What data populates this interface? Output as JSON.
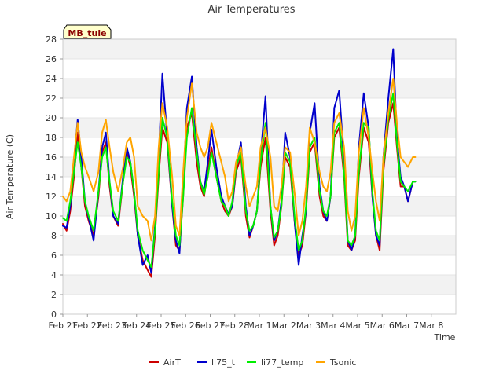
{
  "chart_data": {
    "type": "line",
    "title": "Air Temperatures",
    "xlabel": "Time",
    "ylabel": "Air Temperature (C)",
    "site_label": "MB_tule",
    "ylim": [
      0,
      28
    ],
    "yticks": [
      0,
      2,
      4,
      6,
      8,
      10,
      12,
      14,
      16,
      18,
      20,
      22,
      24,
      26,
      28
    ],
    "xlim": [
      0,
      16
    ],
    "x_unit": "days since Feb 21",
    "xtick_labels": [
      "Feb 21",
      "Feb 22",
      "Feb 23",
      "Feb 24",
      "Feb 25",
      "Feb 26",
      "Feb 27",
      "Feb 28",
      "Mar 1",
      "Mar 2",
      "Mar 3",
      "Mar 4",
      "Mar 5",
      "Mar 6",
      "Mar 7",
      "Mar 8"
    ],
    "grid": "horizontal bands",
    "legend_position": "bottom",
    "series": [
      {
        "name": "AirT",
        "color": "#cc0000",
        "x": [
          0.0,
          0.15,
          0.3,
          0.45,
          0.6,
          0.75,
          0.9,
          1.05,
          1.25,
          1.45,
          1.6,
          1.75,
          1.9,
          2.05,
          2.25,
          2.45,
          2.6,
          2.75,
          2.9,
          3.05,
          3.25,
          3.45,
          3.6,
          3.75,
          3.9,
          4.05,
          4.25,
          4.45,
          4.6,
          4.75,
          4.9,
          5.05,
          5.25,
          5.45,
          5.6,
          5.75,
          5.9,
          6.05,
          6.25,
          6.45,
          6.6,
          6.75,
          6.9,
          7.05,
          7.25,
          7.45,
          7.6,
          7.75,
          7.9,
          8.05,
          8.25,
          8.45,
          8.6,
          8.75,
          8.9,
          9.05,
          9.25,
          9.45,
          9.6,
          9.75,
          9.9,
          10.05,
          10.25,
          10.45,
          10.6,
          10.75,
          10.9,
          11.05,
          11.25,
          11.45,
          11.6,
          11.75,
          11.9,
          12.05,
          12.25,
          12.45,
          12.6,
          12.75,
          12.9,
          13.05,
          13.25,
          13.45,
          13.6,
          13.75,
          13.9,
          14.05,
          14.25,
          14.35
        ],
        "y": [
          9.2,
          8.5,
          10.5,
          14.0,
          18.5,
          15.0,
          11.0,
          9.5,
          8.0,
          12.0,
          16.5,
          17.5,
          13.0,
          10.0,
          9.0,
          13.5,
          16.5,
          15.0,
          12.0,
          8.0,
          5.5,
          4.5,
          3.8,
          8.0,
          14.0,
          19.0,
          17.5,
          11.0,
          7.0,
          6.5,
          12.0,
          19.0,
          20.5,
          15.5,
          13.0,
          12.0,
          14.5,
          17.0,
          14.0,
          11.5,
          10.5,
          10.0,
          11.0,
          14.5,
          16.0,
          10.0,
          7.8,
          9.0,
          10.5,
          15.0,
          18.0,
          10.5,
          7.0,
          8.0,
          11.0,
          16.0,
          15.0,
          9.0,
          6.0,
          7.0,
          10.5,
          16.5,
          17.5,
          12.0,
          10.0,
          9.5,
          12.0,
          18.0,
          19.0,
          14.0,
          7.0,
          6.5,
          7.5,
          14.0,
          19.0,
          17.5,
          12.0,
          8.0,
          6.5,
          14.5,
          19.5,
          21.5,
          17.0,
          13.0,
          13.0,
          11.5,
          13.5,
          13.5
        ]
      },
      {
        "name": "li75_t",
        "color": "#0000cc",
        "x": [
          0.0,
          0.15,
          0.3,
          0.45,
          0.6,
          0.75,
          0.9,
          1.05,
          1.25,
          1.45,
          1.6,
          1.75,
          1.9,
          2.05,
          2.25,
          2.45,
          2.6,
          2.75,
          2.9,
          3.05,
          3.25,
          3.45,
          3.6,
          3.75,
          3.9,
          4.05,
          4.25,
          4.45,
          4.6,
          4.75,
          4.9,
          5.05,
          5.25,
          5.45,
          5.6,
          5.75,
          5.9,
          6.05,
          6.25,
          6.45,
          6.6,
          6.75,
          6.9,
          7.05,
          7.25,
          7.45,
          7.6,
          7.75,
          7.9,
          8.05,
          8.25,
          8.45,
          8.6,
          8.75,
          8.9,
          9.05,
          9.25,
          9.45,
          9.6,
          9.75,
          9.9,
          10.05,
          10.25,
          10.45,
          10.6,
          10.75,
          10.9,
          11.05,
          11.25,
          11.45,
          11.6,
          11.75,
          11.9,
          12.05,
          12.25,
          12.45,
          12.6,
          12.75,
          12.9,
          13.05,
          13.25,
          13.45,
          13.6,
          13.75,
          13.9,
          14.05,
          14.25,
          14.35
        ],
        "y": [
          9.0,
          8.8,
          11.0,
          15.5,
          19.8,
          16.0,
          11.5,
          9.8,
          7.5,
          12.5,
          17.0,
          18.5,
          13.5,
          10.0,
          9.2,
          14.0,
          17.0,
          15.5,
          12.5,
          8.0,
          5.0,
          6.0,
          4.2,
          9.0,
          16.0,
          24.5,
          18.0,
          11.0,
          7.5,
          6.2,
          13.0,
          21.0,
          24.2,
          17.0,
          13.5,
          12.5,
          15.5,
          18.8,
          15.0,
          12.0,
          11.0,
          10.2,
          11.0,
          15.0,
          17.5,
          11.0,
          8.0,
          9.0,
          10.5,
          16.0,
          22.2,
          11.0,
          7.5,
          8.5,
          11.5,
          18.5,
          16.0,
          9.0,
          5.0,
          8.0,
          10.5,
          18.5,
          21.5,
          13.0,
          10.5,
          9.5,
          12.0,
          21.0,
          22.8,
          15.5,
          7.5,
          6.5,
          8.0,
          17.0,
          22.5,
          19.0,
          12.0,
          8.0,
          7.0,
          16.0,
          22.0,
          27.0,
          18.0,
          14.0,
          13.0,
          11.5,
          13.5,
          13.5
        ]
      },
      {
        "name": "li77_temp",
        "color": "#00ee00",
        "x": [
          0.0,
          0.15,
          0.3,
          0.45,
          0.6,
          0.75,
          0.9,
          1.05,
          1.25,
          1.45,
          1.6,
          1.75,
          1.9,
          2.05,
          2.25,
          2.45,
          2.6,
          2.75,
          2.9,
          3.05,
          3.25,
          3.45,
          3.6,
          3.75,
          3.9,
          4.05,
          4.25,
          4.45,
          4.6,
          4.75,
          4.9,
          5.05,
          5.25,
          5.45,
          5.6,
          5.75,
          5.9,
          6.05,
          6.25,
          6.45,
          6.6,
          6.75,
          6.9,
          7.05,
          7.25,
          7.45,
          7.6,
          7.75,
          7.9,
          8.05,
          8.25,
          8.45,
          8.6,
          8.75,
          8.9,
          9.05,
          9.25,
          9.45,
          9.6,
          9.75,
          9.9,
          10.05,
          10.25,
          10.45,
          10.6,
          10.75,
          10.9,
          11.05,
          11.25,
          11.45,
          11.6,
          11.75,
          11.9,
          12.05,
          12.25,
          12.45,
          12.6,
          12.75,
          12.9,
          13.05,
          13.25,
          13.45,
          13.6,
          13.75,
          13.9,
          14.05,
          14.25,
          14.35
        ],
        "y": [
          9.8,
          9.5,
          11.5,
          14.5,
          17.5,
          15.0,
          11.5,
          10.0,
          8.5,
          12.5,
          16.0,
          17.0,
          13.5,
          10.5,
          9.5,
          13.5,
          16.0,
          15.5,
          12.5,
          8.5,
          6.5,
          5.5,
          4.8,
          8.5,
          14.5,
          20.0,
          18.0,
          11.5,
          8.0,
          7.0,
          12.0,
          18.0,
          21.0,
          16.5,
          13.5,
          12.2,
          14.0,
          16.5,
          14.0,
          11.5,
          11.0,
          10.0,
          11.5,
          15.0,
          16.5,
          10.5,
          8.5,
          9.0,
          10.5,
          15.5,
          19.5,
          11.0,
          7.8,
          8.5,
          11.0,
          16.5,
          15.5,
          9.5,
          6.5,
          7.5,
          11.0,
          17.0,
          18.0,
          12.5,
          10.5,
          10.0,
          12.0,
          18.5,
          19.5,
          14.5,
          7.5,
          7.0,
          8.0,
          14.5,
          19.5,
          19.0,
          12.5,
          8.5,
          7.5,
          15.0,
          20.0,
          22.5,
          17.5,
          13.5,
          13.0,
          12.5,
          13.5,
          13.5
        ]
      },
      {
        "name": "Tsonic",
        "color": "#ffa500",
        "x": [
          0.0,
          0.15,
          0.3,
          0.45,
          0.6,
          0.75,
          0.9,
          1.05,
          1.25,
          1.45,
          1.6,
          1.75,
          1.9,
          2.05,
          2.25,
          2.45,
          2.6,
          2.75,
          2.9,
          3.05,
          3.25,
          3.45,
          3.6,
          3.75,
          3.9,
          4.05,
          4.25,
          4.45,
          4.6,
          4.75,
          4.9,
          5.05,
          5.25,
          5.45,
          5.6,
          5.75,
          5.9,
          6.05,
          6.25,
          6.45,
          6.6,
          6.75,
          6.9,
          7.05,
          7.25,
          7.45,
          7.6,
          7.75,
          7.9,
          8.05,
          8.25,
          8.45,
          8.6,
          8.75,
          8.9,
          9.05,
          9.25,
          9.45,
          9.6,
          9.75,
          9.9,
          10.05,
          10.25,
          10.45,
          10.6,
          10.75,
          10.9,
          11.05,
          11.25,
          11.45,
          11.6,
          11.75,
          11.9,
          12.05,
          12.25,
          12.45,
          12.6,
          12.75,
          12.9,
          13.05,
          13.25,
          13.45,
          13.6,
          13.75,
          13.9,
          14.05,
          14.25,
          14.35
        ],
        "y": [
          12.0,
          11.5,
          12.5,
          16.0,
          19.5,
          16.5,
          15.0,
          14.0,
          12.5,
          14.5,
          18.5,
          19.8,
          17.0,
          14.5,
          12.5,
          15.0,
          17.5,
          18.0,
          16.0,
          11.0,
          10.0,
          9.5,
          7.5,
          10.0,
          17.0,
          21.5,
          19.0,
          14.0,
          9.0,
          8.0,
          14.5,
          20.0,
          23.5,
          18.5,
          17.0,
          16.0,
          17.0,
          19.5,
          17.5,
          15.5,
          14.0,
          11.5,
          12.5,
          15.5,
          17.0,
          13.0,
          11.0,
          12.0,
          13.0,
          17.0,
          19.0,
          16.0,
          11.0,
          10.5,
          13.0,
          17.0,
          16.5,
          12.0,
          8.0,
          9.5,
          13.0,
          19.0,
          17.5,
          14.5,
          13.0,
          12.5,
          14.5,
          19.5,
          20.5,
          17.0,
          10.5,
          8.5,
          10.0,
          16.5,
          21.0,
          18.0,
          14.5,
          11.5,
          9.5,
          16.0,
          20.5,
          24.0,
          19.5,
          16.0,
          15.5,
          15.0,
          16.0,
          16.0
        ]
      }
    ]
  }
}
